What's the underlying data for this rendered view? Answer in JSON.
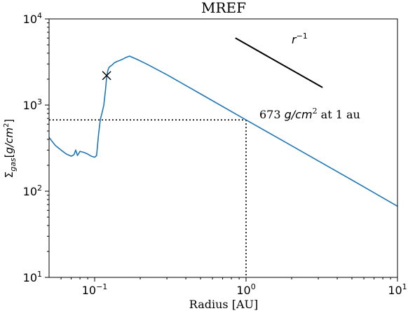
{
  "chart_data": {
    "type": "line",
    "title": "MREF",
    "xlabel": "Radius [AU]",
    "ylabel_parts": [
      "Σ",
      "gas",
      "[",
      "g",
      "/",
      "cm",
      "2",
      "]"
    ],
    "xscale": "log",
    "yscale": "log",
    "xlim": [
      0.05,
      10
    ],
    "ylim": [
      10,
      10000
    ],
    "x_ticks": [
      {
        "value": 0.1,
        "base": "10",
        "exp": "−1"
      },
      {
        "value": 1,
        "base": "10",
        "exp": "0"
      },
      {
        "value": 10,
        "base": "10",
        "exp": "1"
      }
    ],
    "y_ticks": [
      {
        "value": 10,
        "base": "10",
        "exp": "1"
      },
      {
        "value": 100,
        "base": "10",
        "exp": "2"
      },
      {
        "value": 1000,
        "base": "10",
        "exp": "3"
      },
      {
        "value": 10000,
        "base": "10",
        "exp": "4"
      }
    ],
    "series": [
      {
        "color": "#1f77b4",
        "x": [
          0.05,
          0.055,
          0.06,
          0.065,
          0.07,
          0.073,
          0.075,
          0.077,
          0.08,
          0.085,
          0.09,
          0.095,
          0.1,
          0.103,
          0.106,
          0.109,
          0.112,
          0.115,
          0.118,
          0.12,
          0.122,
          0.124,
          0.126,
          0.13,
          0.135,
          0.14,
          0.15,
          0.16,
          0.17,
          0.19,
          0.22,
          0.3,
          0.5,
          1,
          2,
          5,
          10
        ],
        "y": [
          420,
          340,
          300,
          270,
          255,
          265,
          300,
          260,
          290,
          282,
          270,
          255,
          248,
          260,
          450,
          680,
          820,
          1000,
          1500,
          2100,
          2500,
          2700,
          2800,
          2900,
          3100,
          3200,
          3350,
          3550,
          3700,
          3400,
          3000,
          2250,
          1350,
          673,
          337,
          135,
          67
        ]
      }
    ],
    "marker": {
      "x": 0.12,
      "y": 2200,
      "symbol": "x"
    },
    "reference_line": {
      "x": [
        0.85,
        3.2
      ],
      "y": [
        6000,
        1600
      ],
      "label_base": "r",
      "label_exp": "−1"
    },
    "annotation": {
      "x": 1,
      "y": 673,
      "text_value": "673",
      "text_unit_base": "g/cm",
      "text_unit_exp": "2",
      "text_suffix": "at 1 au"
    }
  }
}
